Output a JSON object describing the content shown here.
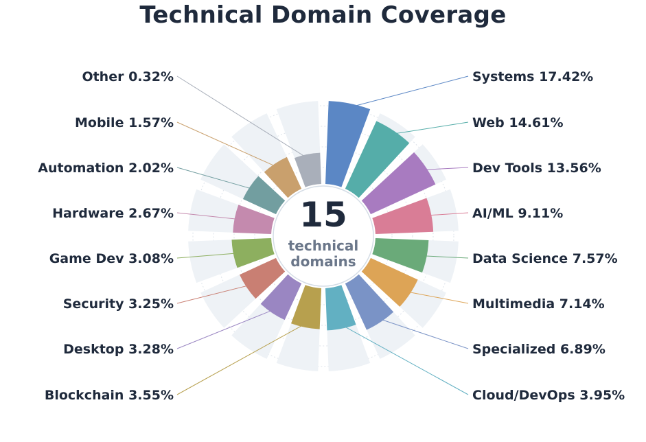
{
  "chart_data": {
    "type": "radial-bar",
    "title": "Technical Domain Coverage",
    "center": {
      "value": "15",
      "line1": "technical",
      "line2": "domains"
    },
    "slices": [
      {
        "name": "Systems",
        "value": 17.42,
        "label": "Systems 17.42%",
        "color": "#5b87c5",
        "side": "right"
      },
      {
        "name": "Web",
        "value": 14.61,
        "label": "Web 14.61%",
        "color": "#55ada9",
        "side": "right"
      },
      {
        "name": "Dev Tools",
        "value": 13.56,
        "label": "Dev Tools 13.56%",
        "color": "#a87bc0",
        "side": "right"
      },
      {
        "name": "AI/ML",
        "value": 9.11,
        "label": "AI/ML 9.11%",
        "color": "#d97d96",
        "side": "right"
      },
      {
        "name": "Data Science",
        "value": 7.57,
        "label": "Data Science 7.57%",
        "color": "#6aaa79",
        "side": "right"
      },
      {
        "name": "Multimedia",
        "value": 7.14,
        "label": "Multimedia 7.14%",
        "color": "#dda456",
        "side": "right"
      },
      {
        "name": "Specialized",
        "value": 6.89,
        "label": "Specialized 6.89%",
        "color": "#7a93c6",
        "side": "right"
      },
      {
        "name": "Cloud/DevOps",
        "value": 3.95,
        "label": "Cloud/DevOps 3.95%",
        "color": "#62b0c2",
        "side": "right"
      },
      {
        "name": "Blockchain",
        "value": 3.55,
        "label": "Blockchain 3.55%",
        "color": "#b7a04e",
        "side": "left"
      },
      {
        "name": "Desktop",
        "value": 3.28,
        "label": "Desktop 3.28%",
        "color": "#9a86c2",
        "side": "left"
      },
      {
        "name": "Security",
        "value": 3.25,
        "label": "Security 3.25%",
        "color": "#c97f73",
        "side": "left"
      },
      {
        "name": "Game Dev",
        "value": 3.08,
        "label": "Game Dev 3.08%",
        "color": "#8daf5f",
        "side": "left"
      },
      {
        "name": "Hardware",
        "value": 2.67,
        "label": "Hardware 2.67%",
        "color": "#c48aae",
        "side": "left"
      },
      {
        "name": "Automation",
        "value": 2.02,
        "label": "Automation 2.02%",
        "color": "#729ea0",
        "side": "left"
      },
      {
        "name": "Mobile",
        "value": 1.57,
        "label": "Mobile 1.57%",
        "color": "#c9a06d",
        "side": "left"
      },
      {
        "name": "Other",
        "value": 0.32,
        "label": "Other 0.32%",
        "color": "#a9afba",
        "side": "left"
      }
    ]
  }
}
